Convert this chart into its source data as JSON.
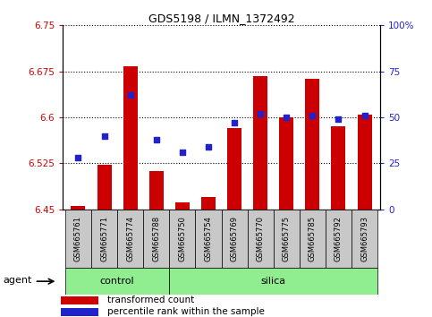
{
  "title": "GDS5198 / ILMN_1372492",
  "samples": [
    "GSM665761",
    "GSM665771",
    "GSM665774",
    "GSM665788",
    "GSM665750",
    "GSM665754",
    "GSM665769",
    "GSM665770",
    "GSM665775",
    "GSM665785",
    "GSM665792",
    "GSM665793"
  ],
  "groups": [
    "control",
    "control",
    "control",
    "control",
    "silica",
    "silica",
    "silica",
    "silica",
    "silica",
    "silica",
    "silica",
    "silica"
  ],
  "transformed_count": [
    6.455,
    6.523,
    6.683,
    6.512,
    6.461,
    6.47,
    6.583,
    6.667,
    6.6,
    6.663,
    6.585,
    6.605
  ],
  "percentile_rank": [
    28,
    40,
    62,
    38,
    31,
    34,
    47,
    52,
    50,
    51,
    49,
    51
  ],
  "ylim_left": [
    6.45,
    6.75
  ],
  "ylim_right": [
    0,
    100
  ],
  "yticks_left": [
    6.45,
    6.525,
    6.6,
    6.675,
    6.75
  ],
  "ytick_labels_left": [
    "6.45",
    "6.525",
    "6.6",
    "6.675",
    "6.75"
  ],
  "yticks_right": [
    0,
    25,
    50,
    75,
    100
  ],
  "ytick_labels_right": [
    "0",
    "25",
    "50",
    "75",
    "100%"
  ],
  "bar_color": "#cc0000",
  "dot_color": "#2222cc",
  "bar_bottom": 6.45,
  "grid_linestyle": "dotted",
  "grid_color": "black",
  "legend_items": [
    "transformed count",
    "percentile rank within the sample"
  ],
  "legend_colors": [
    "#cc0000",
    "#2222cc"
  ],
  "agent_label": "agent",
  "control_label": "control",
  "silica_label": "silica",
  "green_color": "#90ee90",
  "gray_color": "#c8c8c8",
  "n_control": 4,
  "n_silica": 8
}
